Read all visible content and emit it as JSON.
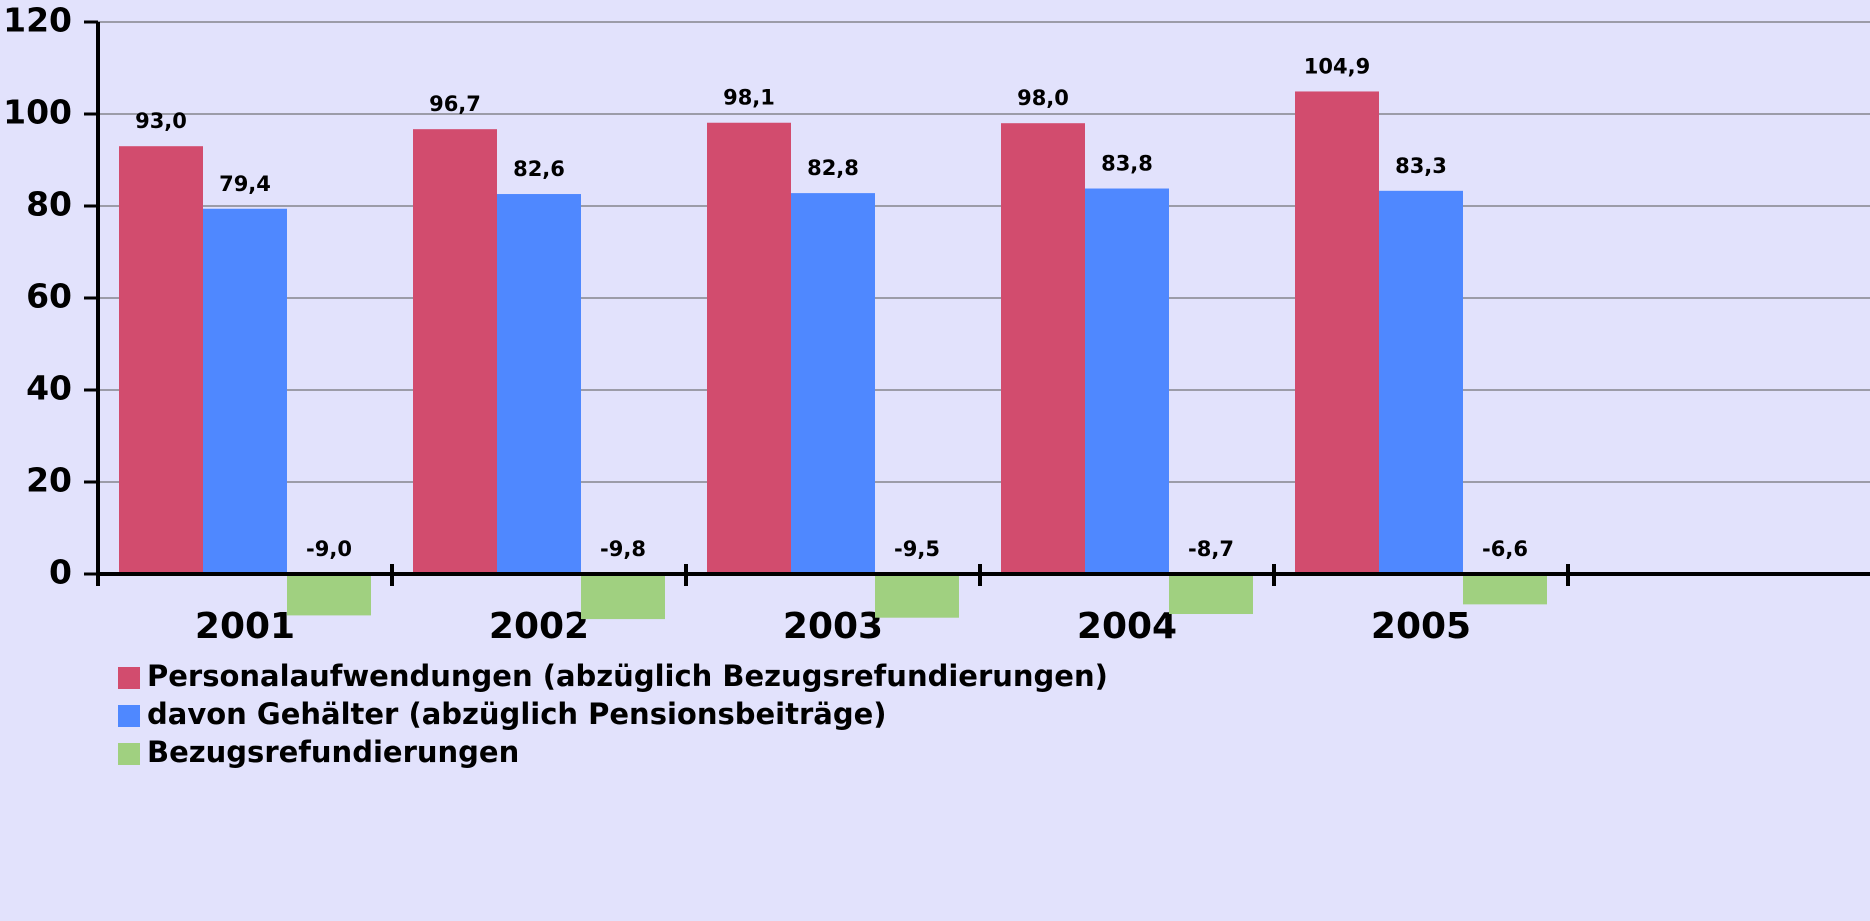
{
  "chart_data": {
    "type": "bar",
    "categories": [
      "2001",
      "2002",
      "2003",
      "2004",
      "2005"
    ],
    "series": [
      {
        "name": "Personalaufwendungen (abzüglich Bezugsrefundierungen)",
        "color": "#d24c6e",
        "values": [
          93.0,
          96.7,
          98.1,
          98.0,
          104.9
        ],
        "value_labels": [
          "93,0",
          "96,7",
          "98,1",
          "98,0",
          "104,9"
        ]
      },
      {
        "name": "davon Gehälter (abzüglich Pensionsbeiträge)",
        "color": "#4f88ff",
        "values": [
          79.4,
          82.6,
          82.8,
          83.8,
          83.3
        ],
        "value_labels": [
          "79,4",
          "82,6",
          "82,8",
          "83,8",
          "83,3"
        ]
      },
      {
        "name": "Bezugsrefundierungen",
        "color": "#a0d080",
        "values": [
          -9.0,
          -9.8,
          -9.5,
          -8.7,
          -6.6
        ],
        "value_labels": [
          "-9,0",
          "-9,8",
          "-9,5",
          "-8,7",
          "-6,6"
        ]
      }
    ],
    "ylim": [
      0,
      120
    ],
    "yticks": [
      0,
      20,
      40,
      60,
      80,
      100,
      120
    ],
    "grid": true,
    "legend": "bottom"
  }
}
